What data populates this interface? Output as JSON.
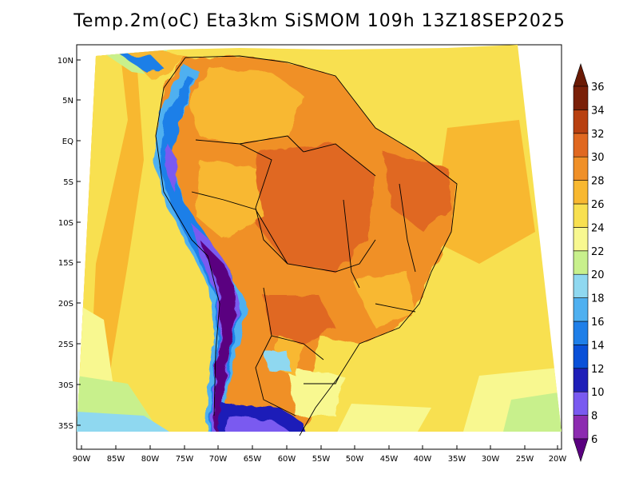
{
  "title": "Temp.2m(oC) Eta3km SiSMOM 109h 13Z18SEP2025",
  "lat_ticks": [
    "10N",
    "5N",
    "EQ",
    "5S",
    "10S",
    "15S",
    "20S",
    "25S",
    "30S",
    "35S"
  ],
  "lon_ticks": [
    "90W",
    "85W",
    "80W",
    "75W",
    "70W",
    "65W",
    "60W",
    "55W",
    "50W",
    "45W",
    "40W",
    "35W",
    "30W",
    "25W",
    "20W"
  ],
  "colorbar": {
    "levels": [
      "6",
      "8",
      "10",
      "12",
      "14",
      "16",
      "18",
      "20",
      "22",
      "24",
      "26",
      "28",
      "30",
      "32",
      "34",
      "36"
    ],
    "colors": [
      "#5a0080",
      "#8c2bb0",
      "#7a5af0",
      "#1f1fb8",
      "#0a50d8",
      "#1f7fe8",
      "#4fb0f0",
      "#8fd8f0",
      "#c8f08c",
      "#f8f890",
      "#f8e050",
      "#f8b830",
      "#f09028",
      "#e06820",
      "#b84010",
      "#7a2008",
      "#6a1a05"
    ]
  }
}
